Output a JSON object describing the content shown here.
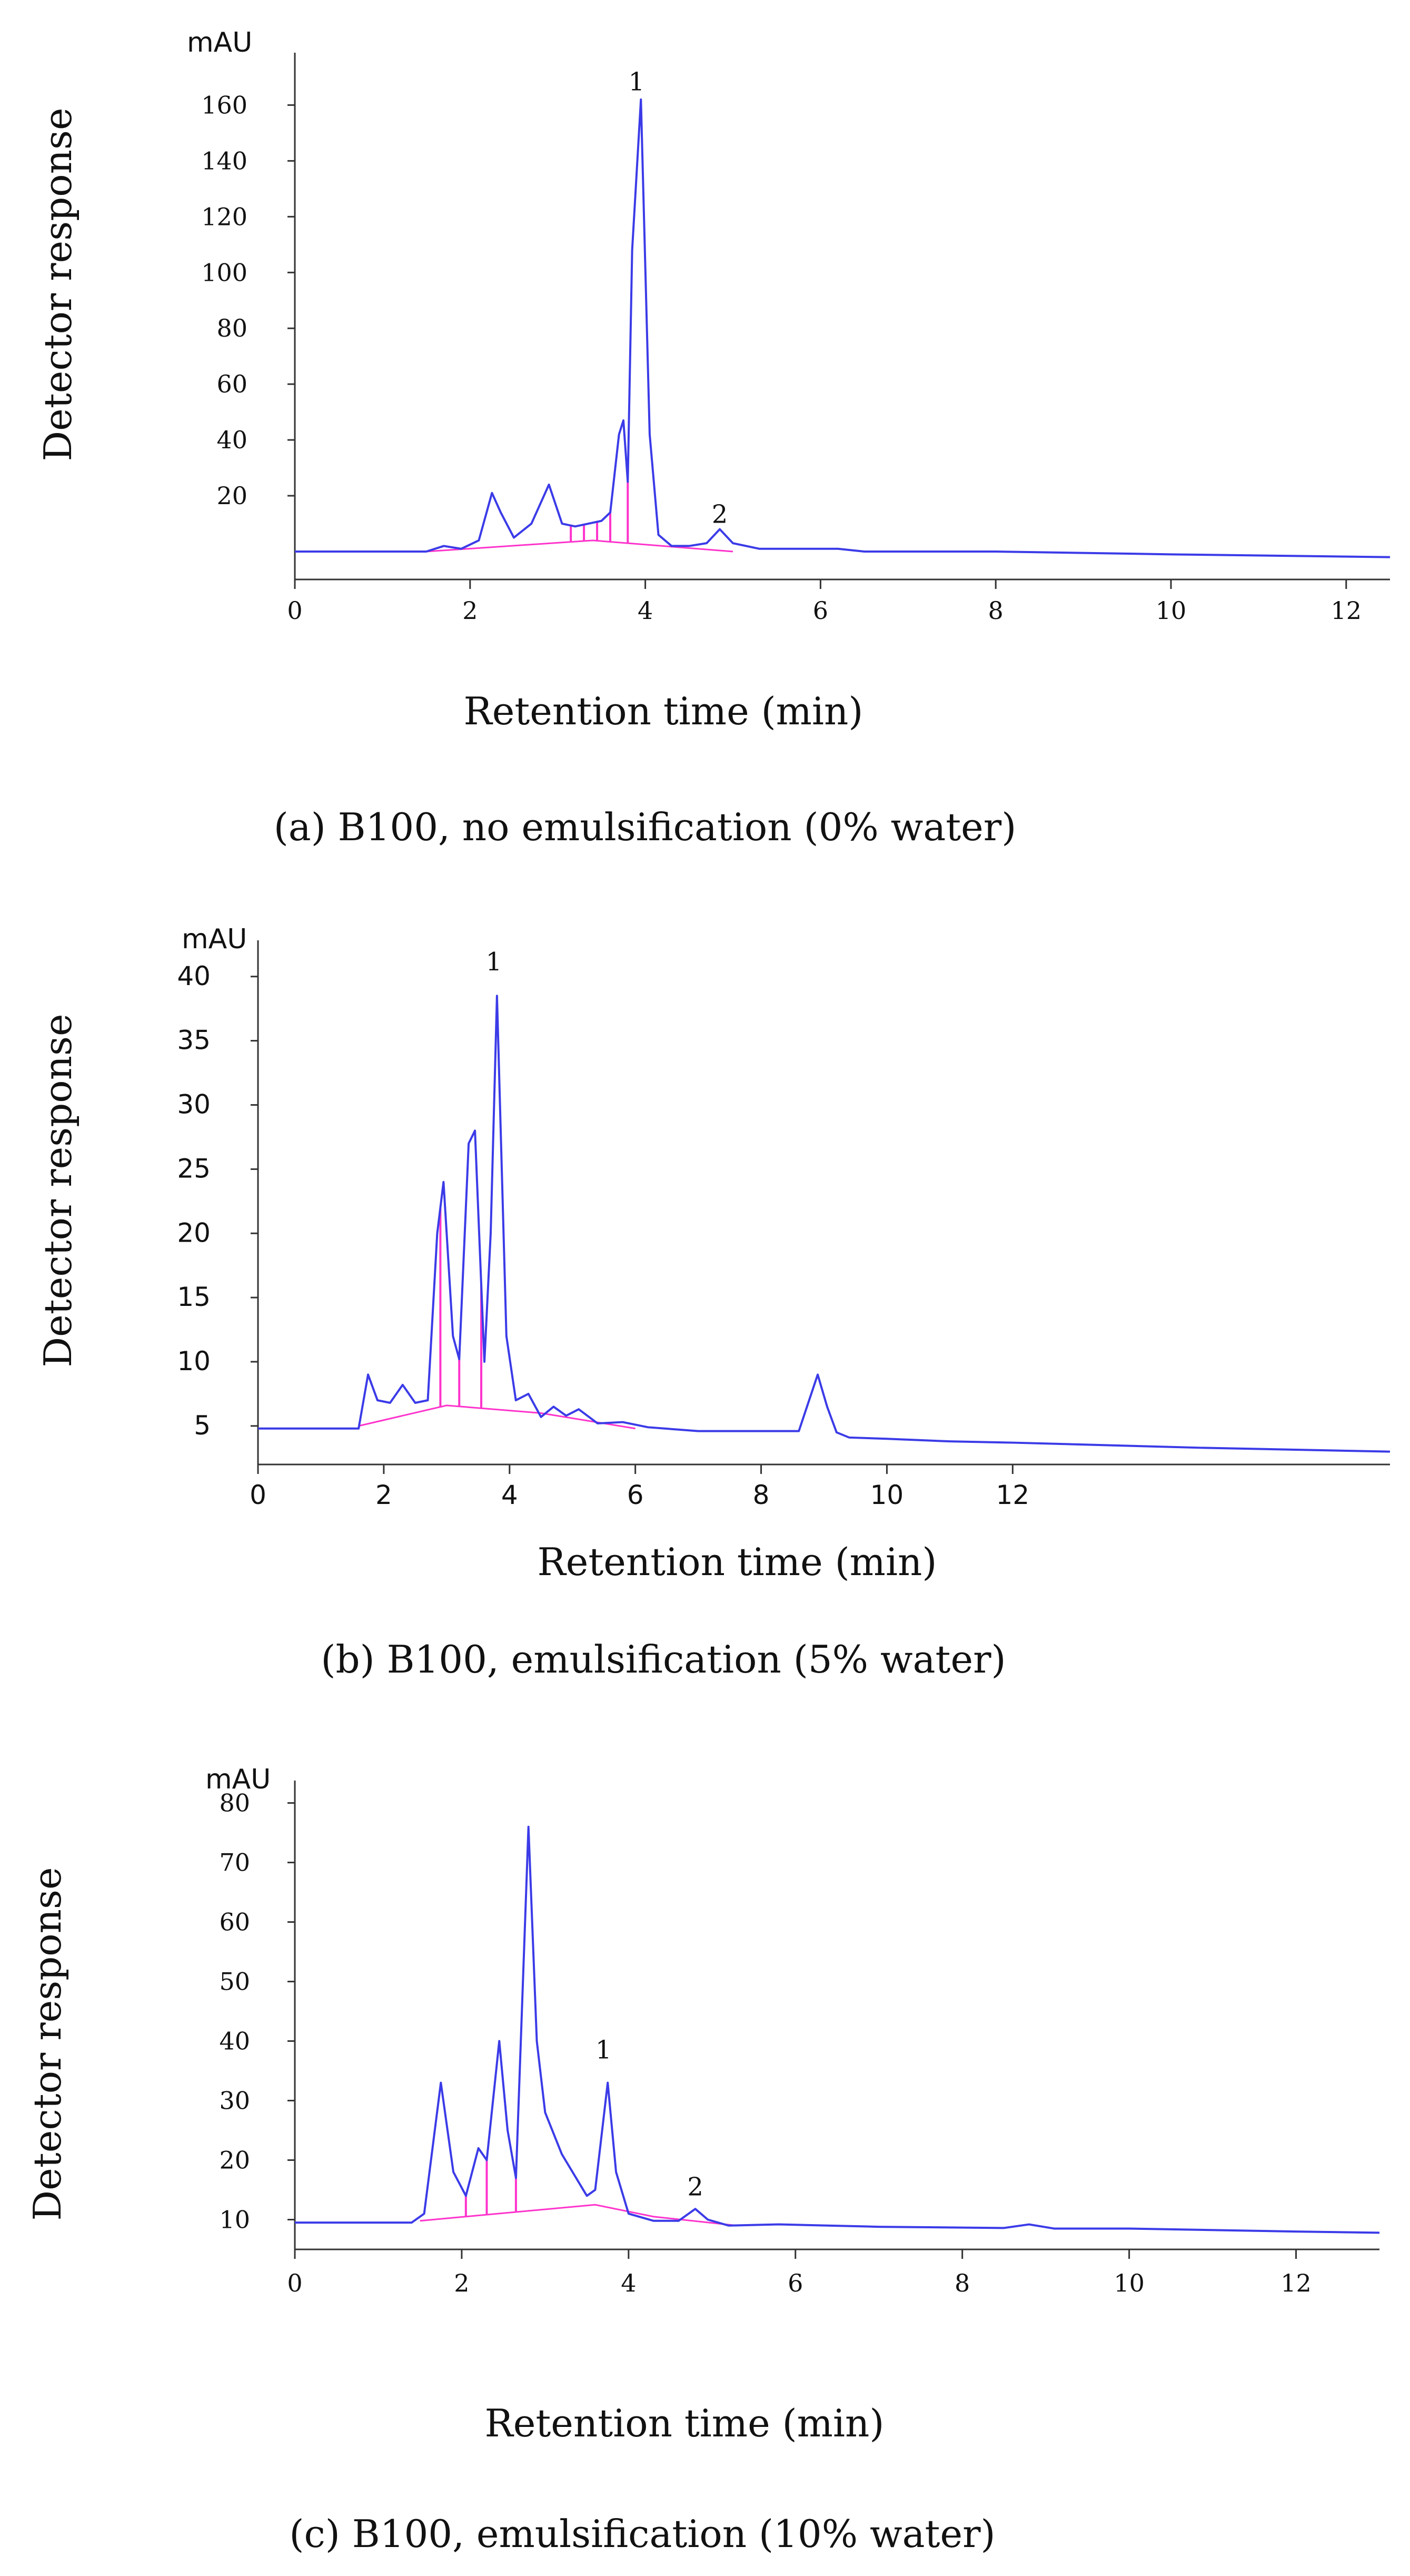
{
  "chart_data": [
    {
      "type": "line",
      "caption": "(a)  B100, no emulsification (0% water)",
      "xlabel": "Retention time (min)",
      "ylabel": "Detector response",
      "y_unit": "mAU",
      "xlim": [
        0,
        12.5
      ],
      "ylim": [
        -10,
        175
      ],
      "x_ticks": [
        "0",
        "2",
        "4",
        "6",
        "8",
        "10",
        "12"
      ],
      "y_ticks": [
        "20",
        "40",
        "60",
        "80",
        "100",
        "120",
        "140",
        "160"
      ],
      "peak_labels": [
        {
          "label": "1",
          "x": 3.9,
          "y": 163
        },
        {
          "label": "2",
          "x": 4.85,
          "y": 8
        }
      ],
      "integration_markers": [
        3.15,
        3.3,
        3.45,
        3.6,
        3.8
      ],
      "series": [
        {
          "x": [
            0,
            1.5,
            1.7,
            1.9,
            2.1,
            2.25,
            2.35,
            2.5,
            2.7,
            2.9,
            3.05,
            3.2,
            3.35,
            3.5,
            3.6,
            3.7,
            3.75,
            3.8,
            3.85,
            3.95,
            4.05,
            4.15,
            4.3,
            4.5,
            4.7,
            4.85,
            5.0,
            5.3,
            6.0,
            6.2,
            6.5,
            8.0,
            10.0,
            12.5
          ],
          "y": [
            0,
            0,
            2,
            1,
            4,
            21,
            14,
            5,
            10,
            24,
            10,
            9,
            10,
            11,
            14,
            42,
            47,
            25,
            108,
            162,
            42,
            6,
            2,
            2,
            3,
            8,
            3,
            1,
            1,
            1,
            0,
            0,
            -1,
            -2
          ]
        }
      ],
      "baseline": {
        "x": [
          1.5,
          3.4,
          5.0
        ],
        "y": [
          0,
          4,
          0
        ]
      }
    },
    {
      "type": "line",
      "caption": "(b)  B100, emulsification (5% water)",
      "xlabel": "Retention time (min)",
      "ylabel": "Detector response",
      "y_unit": "mAU",
      "xlim": [
        0,
        18
      ],
      "ylim": [
        2,
        42
      ],
      "x_ticks": [
        "0",
        "2",
        "4",
        "6",
        "8",
        "10",
        "12"
      ],
      "y_ticks": [
        "5",
        "10",
        "15",
        "20",
        "25",
        "30",
        "35",
        "40"
      ],
      "peak_labels": [
        {
          "label": "1",
          "x": 3.75,
          "y": 40
        }
      ],
      "integration_markers": [
        2.9,
        3.2,
        3.55
      ],
      "series": [
        {
          "x": [
            0,
            1.6,
            1.75,
            1.9,
            2.1,
            2.3,
            2.5,
            2.7,
            2.85,
            2.95,
            3.1,
            3.2,
            3.35,
            3.45,
            3.6,
            3.7,
            3.8,
            3.95,
            4.1,
            4.3,
            4.5,
            4.7,
            4.9,
            5.1,
            5.4,
            5.8,
            6.2,
            7.0,
            8.0,
            8.6,
            8.9,
            9.05,
            9.2,
            9.4,
            10.0,
            11.0,
            12.0,
            15.0,
            18.0
          ],
          "y": [
            4.8,
            4.8,
            9,
            7,
            6.8,
            8.2,
            6.8,
            7,
            20,
            24,
            12,
            10.2,
            27,
            28,
            10,
            20,
            38.5,
            12,
            7,
            7.5,
            5.7,
            6.5,
            5.8,
            6.3,
            5.2,
            5.3,
            4.9,
            4.6,
            4.6,
            4.6,
            9,
            6.5,
            4.5,
            4.1,
            4.0,
            3.8,
            3.7,
            3.3,
            3.0
          ]
        }
      ],
      "baseline": {
        "x": [
          1.6,
          3.0,
          4.5,
          6.0
        ],
        "y": [
          5.0,
          6.6,
          6.0,
          4.8
        ]
      }
    },
    {
      "type": "line",
      "caption": "(c)  B100, emulsification (10% water)",
      "xlabel": "Retention time (min)",
      "ylabel": "Detector response",
      "y_unit": "mAU",
      "xlim": [
        0,
        13
      ],
      "ylim": [
        5,
        82
      ],
      "x_ticks": [
        "0",
        "2",
        "4",
        "6",
        "8",
        "10",
        "12"
      ],
      "y_ticks": [
        "10",
        "20",
        "30",
        "40",
        "50",
        "60",
        "70",
        "80"
      ],
      "peak_labels": [
        {
          "label": "1",
          "x": 3.7,
          "y": 36
        },
        {
          "label": "2",
          "x": 4.8,
          "y": 13
        }
      ],
      "integration_markers": [
        2.05,
        2.3,
        2.65
      ],
      "series": [
        {
          "x": [
            0,
            1.4,
            1.55,
            1.75,
            1.9,
            2.05,
            2.2,
            2.3,
            2.45,
            2.55,
            2.65,
            2.8,
            2.9,
            3.0,
            3.2,
            3.5,
            3.6,
            3.75,
            3.85,
            4.0,
            4.3,
            4.6,
            4.8,
            4.95,
            5.2,
            5.8,
            7.0,
            8.5,
            8.8,
            9.1,
            10.0,
            12.0,
            13.0
          ],
          "y": [
            9.5,
            9.5,
            11,
            33,
            18,
            14,
            22,
            20,
            40,
            25,
            17,
            76,
            40,
            28,
            21,
            14,
            15,
            33,
            18,
            11,
            9.8,
            9.8,
            11.8,
            10,
            9,
            9.2,
            8.8,
            8.6,
            9.2,
            8.5,
            8.5,
            8.0,
            7.8
          ]
        }
      ],
      "baseline": {
        "x": [
          1.5,
          3.6,
          4.3,
          5.3
        ],
        "y": [
          9.8,
          12.5,
          10.5,
          9.0
        ]
      }
    }
  ]
}
